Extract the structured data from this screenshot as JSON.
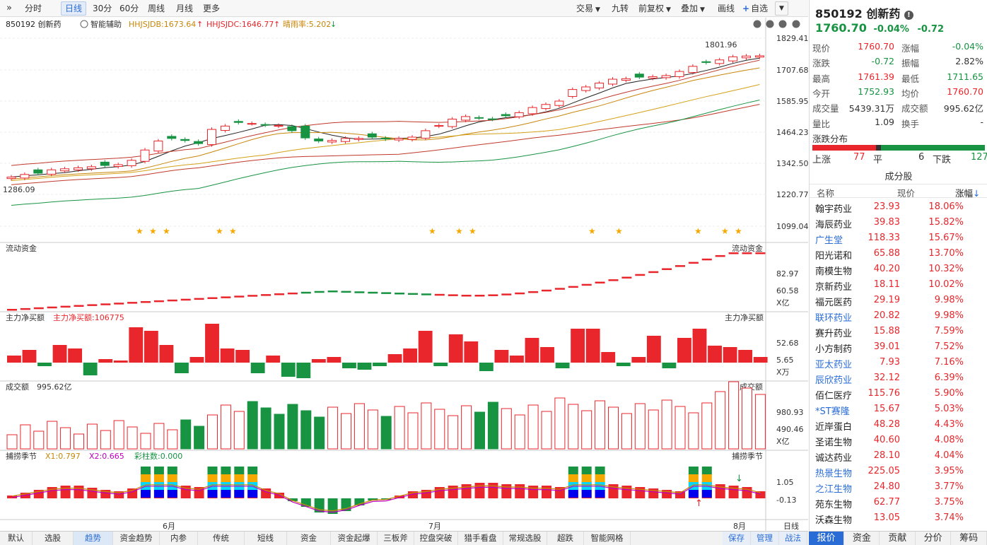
{
  "toolbar": {
    "left": [
      {
        "label": "分时"
      },
      {
        "label": "日线",
        "active": true
      },
      {
        "label": "30分"
      },
      {
        "label": "60分"
      },
      {
        "label": "周线"
      },
      {
        "label": "月线"
      },
      {
        "label": "更多"
      }
    ],
    "right": [
      {
        "label": "交易"
      },
      {
        "label": "九转"
      },
      {
        "label": "前复权"
      },
      {
        "label": "叠加"
      },
      {
        "label": "画线"
      },
      {
        "label": "自选"
      }
    ]
  },
  "stock": {
    "code": "850192",
    "name": "创新药",
    "code_name": "850192 创新药",
    "price": "1760.70",
    "change_pct": "-0.04%",
    "change": "-0.72"
  },
  "indicators": {
    "assist": "智能辅助",
    "hhjsjdb": "HHJSJDB:1673.64",
    "hhjsjdc": "HHJSJDC:1646.77",
    "ratio": "晴雨率:5.202"
  },
  "panels": {
    "flow": "流动资金",
    "net": "主力净买额",
    "net_value": "主力净买额:106775",
    "vol": "成交额",
    "vol_value": "995.62亿",
    "season": "捕捞季节",
    "x1": "X1:0.797",
    "x2": "X2:0.665",
    "bars": "彩柱数:0.000"
  },
  "axis": {
    "main": [
      "1829.41",
      "1707.68",
      "1585.95",
      "1464.23",
      "1342.50",
      "1220.77",
      "1099.04"
    ],
    "flow": [
      "82.97",
      "60.58",
      "X亿"
    ],
    "net": [
      "52.68",
      "5.65",
      "X万"
    ],
    "vol": [
      "980.93",
      "490.46",
      "X亿"
    ],
    "season": [
      "1.05",
      "-0.13"
    ],
    "months": [
      "6月",
      "7月",
      "8月"
    ],
    "period": "日线"
  },
  "annotations": {
    "high": "1801.96",
    "low": "1286.09"
  },
  "quote": {
    "rows": [
      {
        "l1": "现价",
        "v1": "1760.70",
        "c1": "red",
        "l2": "涨幅",
        "v2": "-0.04%",
        "c2": "green"
      },
      {
        "l1": "涨跌",
        "v1": "-0.72",
        "c1": "green",
        "l2": "振幅",
        "v2": "2.82%",
        "c2": ""
      },
      {
        "l1": "最高",
        "v1": "1761.39",
        "c1": "red",
        "l2": "最低",
        "v2": "1711.65",
        "c2": "green"
      },
      {
        "l1": "今开",
        "v1": "1752.93",
        "c1": "green",
        "l2": "均价",
        "v2": "1760.70",
        "c2": "red"
      },
      {
        "l1": "成交量",
        "v1": "5439.31万",
        "c1": "",
        "l2": "成交额",
        "v2": "995.62亿",
        "c2": ""
      },
      {
        "l1": "量比",
        "v1": "1.09",
        "c1": "",
        "l2": "换手",
        "v2": "-",
        "c2": ""
      }
    ]
  },
  "dist": {
    "title": "涨跌分布",
    "up_label": "上涨",
    "up": "77",
    "flat_label": "平",
    "flat": "6",
    "down_label": "下跌",
    "down": "127"
  },
  "constituents": {
    "title": "成分股",
    "headers": [
      "名称",
      "现价",
      "涨幅"
    ],
    "rows": [
      {
        "name": "翰宇药业",
        "price": "23.93",
        "pct": "18.06%",
        "blue": false
      },
      {
        "name": "海辰药业",
        "price": "39.83",
        "pct": "15.82%",
        "blue": false
      },
      {
        "name": "广生堂",
        "price": "118.33",
        "pct": "15.67%",
        "blue": true
      },
      {
        "name": "阳光诺和",
        "price": "65.88",
        "pct": "13.70%",
        "blue": false
      },
      {
        "name": "南模生物",
        "price": "40.20",
        "pct": "10.32%",
        "blue": false
      },
      {
        "name": "京新药业",
        "price": "18.11",
        "pct": "10.02%",
        "blue": false
      },
      {
        "name": "福元医药",
        "price": "29.19",
        "pct": "9.98%",
        "blue": false
      },
      {
        "name": "联环药业",
        "price": "20.82",
        "pct": "9.98%",
        "blue": true
      },
      {
        "name": "赛升药业",
        "price": "15.88",
        "pct": "7.59%",
        "blue": false
      },
      {
        "name": "小方制药",
        "price": "39.01",
        "pct": "7.52%",
        "blue": false
      },
      {
        "name": "亚太药业",
        "price": "7.93",
        "pct": "7.16%",
        "blue": true
      },
      {
        "name": "辰欣药业",
        "price": "32.12",
        "pct": "6.39%",
        "blue": true
      },
      {
        "name": "佰仁医疗",
        "price": "115.76",
        "pct": "5.90%",
        "blue": false
      },
      {
        "name": "*ST赛隆",
        "price": "15.67",
        "pct": "5.03%",
        "blue": true
      },
      {
        "name": "近岸蛋白",
        "price": "48.28",
        "pct": "4.43%",
        "blue": false
      },
      {
        "name": "圣诺生物",
        "price": "40.60",
        "pct": "4.08%",
        "blue": false
      },
      {
        "name": "诚达药业",
        "price": "28.10",
        "pct": "4.04%",
        "blue": false
      },
      {
        "name": "热景生物",
        "price": "225.05",
        "pct": "3.95%",
        "blue": true
      },
      {
        "name": "之江生物",
        "price": "24.80",
        "pct": "3.77%",
        "blue": true
      },
      {
        "name": "苑东生物",
        "price": "62.77",
        "pct": "3.75%",
        "blue": false
      },
      {
        "name": "沃森生物",
        "price": "13.05",
        "pct": "3.74%",
        "blue": false
      }
    ]
  },
  "bottom_tabs": [
    "默认",
    "选股",
    "趋势",
    "资金趋势",
    "内参",
    "传统",
    "短线",
    "资金",
    "资金起爆",
    "三板斧",
    "控盘突破",
    "猎手看盘",
    "常规选股",
    "超跌",
    "智能网格"
  ],
  "bottom_right": [
    "保存",
    "管理",
    "战法"
  ],
  "right_tabs": [
    "报价",
    "资金",
    "贡献",
    "分价",
    "筹码"
  ],
  "colors": {
    "up": "#e8262b",
    "down": "#179342",
    "accent": "#2a6cd6"
  }
}
